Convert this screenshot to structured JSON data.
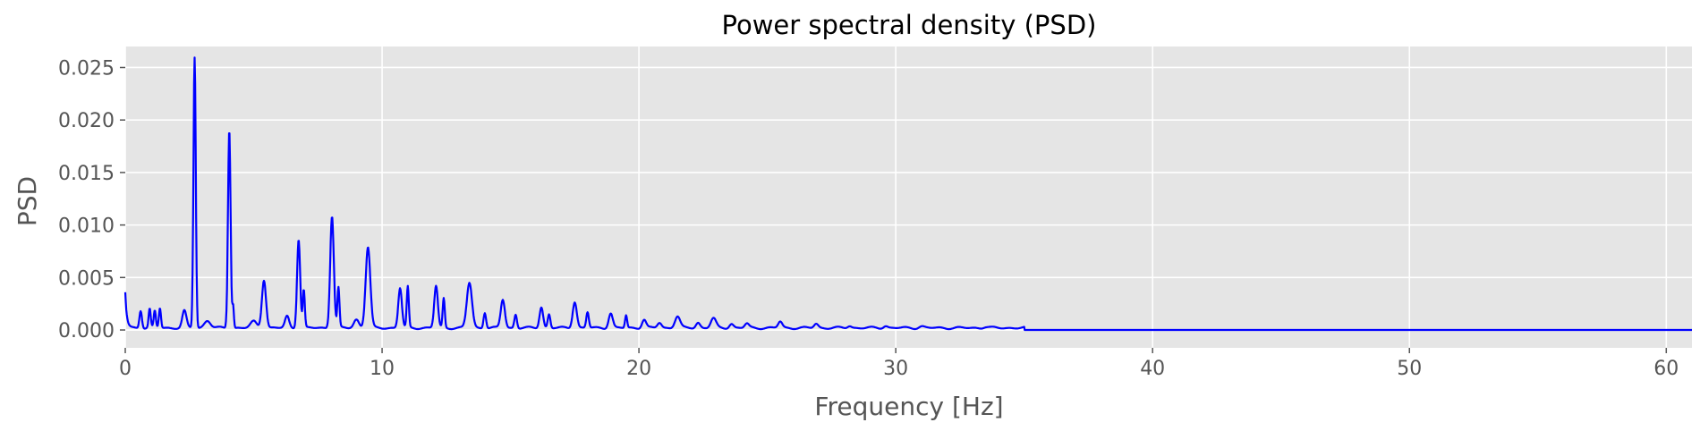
{
  "chart_data": {
    "type": "line",
    "title": "Power spectral density (PSD)",
    "xlabel": "Frequency [Hz]",
    "ylabel": "PSD",
    "xlim": [
      0,
      61
    ],
    "ylim": [
      -0.0017,
      0.027
    ],
    "xticks": [
      0,
      10,
      20,
      30,
      40,
      50,
      60
    ],
    "xtick_labels": [
      "0",
      "10",
      "20",
      "30",
      "40",
      "50",
      "60"
    ],
    "yticks": [
      0.0,
      0.005,
      0.01,
      0.015,
      0.02,
      0.025
    ],
    "ytick_labels": [
      "0.000",
      "0.005",
      "0.010",
      "0.015",
      "0.020",
      "0.025"
    ],
    "grid": true,
    "style": "ggplot",
    "colors": {
      "line": "#0000ff",
      "plot_background": "#e5e5e5",
      "grid": "#ffffff"
    },
    "series": [
      {
        "baseline": 0.0002,
        "start_value": 0.0034,
        "floor_after": 35,
        "peaks": [
          [
            0.6,
            0.0017,
            0.05
          ],
          [
            0.95,
            0.0018,
            0.04
          ],
          [
            1.15,
            0.0016,
            0.04
          ],
          [
            1.35,
            0.0019,
            0.04
          ],
          [
            2.3,
            0.0016,
            0.08
          ],
          [
            2.7,
            0.0258,
            0.045
          ],
          [
            3.2,
            0.0007,
            0.12
          ],
          [
            4.05,
            0.019,
            0.05
          ],
          [
            4.2,
            0.0021,
            0.03
          ],
          [
            5.0,
            0.0006,
            0.12
          ],
          [
            5.4,
            0.0046,
            0.08
          ],
          [
            6.3,
            0.0011,
            0.08
          ],
          [
            6.75,
            0.0085,
            0.06
          ],
          [
            6.95,
            0.0036,
            0.04
          ],
          [
            8.05,
            0.0107,
            0.07
          ],
          [
            8.3,
            0.0038,
            0.04
          ],
          [
            9.0,
            0.0008,
            0.1
          ],
          [
            9.45,
            0.0077,
            0.09
          ],
          [
            10.7,
            0.0038,
            0.07
          ],
          [
            11.0,
            0.0039,
            0.04
          ],
          [
            12.1,
            0.004,
            0.07
          ],
          [
            12.4,
            0.0028,
            0.04
          ],
          [
            13.4,
            0.0043,
            0.1
          ],
          [
            14.0,
            0.0015,
            0.05
          ],
          [
            14.7,
            0.0027,
            0.08
          ],
          [
            15.2,
            0.0013,
            0.05
          ],
          [
            16.2,
            0.002,
            0.07
          ],
          [
            16.5,
            0.0013,
            0.05
          ],
          [
            17.5,
            0.0025,
            0.08
          ],
          [
            18.0,
            0.0015,
            0.05
          ],
          [
            18.9,
            0.0014,
            0.08
          ],
          [
            19.5,
            0.0012,
            0.04
          ],
          [
            20.2,
            0.0008,
            0.08
          ],
          [
            20.8,
            0.0005,
            0.08
          ],
          [
            21.5,
            0.0011,
            0.1
          ],
          [
            22.3,
            0.0005,
            0.08
          ],
          [
            22.9,
            0.0009,
            0.1
          ],
          [
            23.6,
            0.0004,
            0.08
          ],
          [
            24.2,
            0.0004,
            0.08
          ],
          [
            25.5,
            0.0006,
            0.08
          ],
          [
            26.9,
            0.0004,
            0.08
          ],
          [
            28.2,
            0.0002,
            0.08
          ],
          [
            29.6,
            0.0002,
            0.08
          ],
          [
            31.0,
            0.00015,
            0.1
          ],
          [
            33.5,
            0.0001,
            0.1
          ]
        ]
      }
    ]
  }
}
